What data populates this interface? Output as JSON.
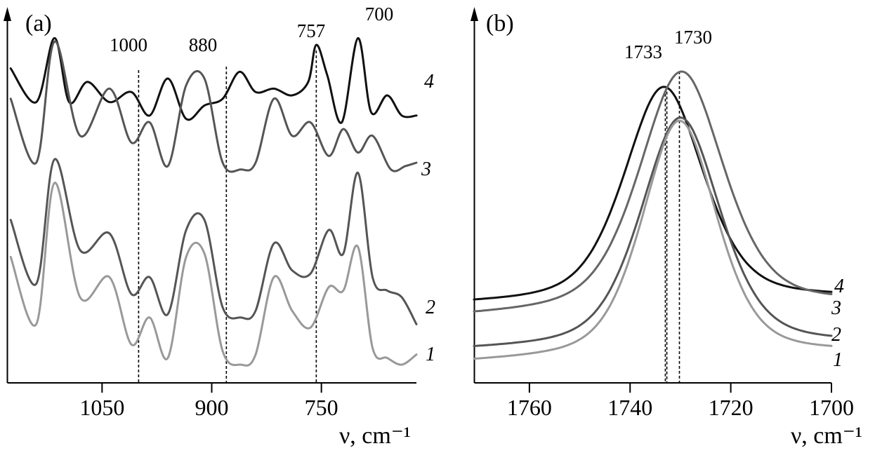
{
  "chart_data": [
    {
      "panel": "(a)",
      "type": "line",
      "xlabel": "ν, cm⁻¹",
      "x_ticks": [
        1050,
        900,
        750
      ],
      "xlim": [
        1180,
        620
      ],
      "peak_labels": [
        "1000",
        "880",
        "757",
        "700"
      ],
      "peak_guides": [
        1000,
        880,
        757
      ],
      "series": [
        {
          "name": "4",
          "color": "#111111",
          "x": [
            1175,
            1140,
            1115,
            1095,
            1070,
            1040,
            1010,
            985,
            960,
            935,
            910,
            885,
            862,
            840,
            815,
            790,
            768,
            757,
            742,
            722,
            700,
            682,
            660,
            640,
            620
          ],
          "values": [
            0.88,
            0.78,
            0.97,
            0.78,
            0.84,
            0.78,
            0.81,
            0.74,
            0.85,
            0.73,
            0.77,
            0.79,
            0.87,
            0.81,
            0.82,
            0.8,
            0.84,
            0.95,
            0.86,
            0.72,
            0.97,
            0.75,
            0.8,
            0.74,
            0.74
          ]
        },
        {
          "name": "3",
          "color": "#555555",
          "x": [
            1175,
            1140,
            1115,
            1080,
            1040,
            1010,
            985,
            960,
            935,
            910,
            885,
            860,
            840,
            815,
            790,
            765,
            740,
            720,
            700,
            680,
            655,
            635,
            620
          ],
          "values": [
            0.79,
            0.6,
            0.96,
            0.68,
            0.82,
            0.66,
            0.72,
            0.59,
            0.83,
            0.85,
            0.6,
            0.58,
            0.6,
            0.79,
            0.68,
            0.72,
            0.62,
            0.7,
            0.63,
            0.68,
            0.58,
            0.59,
            0.6
          ]
        },
        {
          "name": "2",
          "color": "#555555",
          "x": [
            1175,
            1140,
            1115,
            1080,
            1040,
            1010,
            985,
            960,
            935,
            910,
            885,
            860,
            840,
            815,
            790,
            765,
            740,
            720,
            700,
            680,
            660,
            640,
            620
          ],
          "values": [
            0.43,
            0.24,
            0.61,
            0.34,
            0.39,
            0.21,
            0.26,
            0.15,
            0.4,
            0.43,
            0.17,
            0.14,
            0.16,
            0.36,
            0.28,
            0.27,
            0.4,
            0.33,
            0.57,
            0.26,
            0.22,
            0.2,
            0.12
          ]
        },
        {
          "name": "1",
          "color": "#999999",
          "x": [
            1175,
            1140,
            1115,
            1080,
            1040,
            1010,
            985,
            960,
            935,
            910,
            885,
            860,
            840,
            815,
            790,
            765,
            740,
            720,
            700,
            680,
            660,
            640,
            620
          ],
          "values": [
            0.32,
            0.12,
            0.54,
            0.2,
            0.26,
            0.06,
            0.14,
            0.02,
            0.32,
            0.33,
            0.04,
            0.0,
            0.03,
            0.26,
            0.16,
            0.11,
            0.23,
            0.22,
            0.35,
            0.05,
            0.02,
            0.0,
            0.03
          ]
        }
      ]
    },
    {
      "panel": "(b)",
      "type": "line",
      "xlabel": "ν, cm⁻¹",
      "x_ticks": [
        1760,
        1740,
        1720,
        1700
      ],
      "xlim": [
        1771,
        1700
      ],
      "peak_labels": [
        "1733",
        "1730"
      ],
      "peak_guides": [
        1733,
        1730
      ],
      "series": [
        {
          "name": "4",
          "color": "#111111",
          "peak_x": 1733.3,
          "peak_y": 0.9,
          "baseline_left": 0.19,
          "baseline_right": 0.21,
          "width": 8.0
        },
        {
          "name": "3",
          "color": "#666666",
          "peak_x": 1729.8,
          "peak_y": 0.95,
          "baseline_left": 0.15,
          "baseline_right": 0.19,
          "width": 8.5
        },
        {
          "name": "2",
          "color": "#555555",
          "peak_x": 1730.0,
          "peak_y": 0.8,
          "baseline_left": 0.04,
          "baseline_right": 0.06,
          "width": 8.0
        },
        {
          "name": "1",
          "color": "#999999",
          "peak_x": 1730.2,
          "peak_y": 0.79,
          "baseline_left": 0.0,
          "baseline_right": 0.03,
          "width": 7.5
        }
      ]
    }
  ]
}
